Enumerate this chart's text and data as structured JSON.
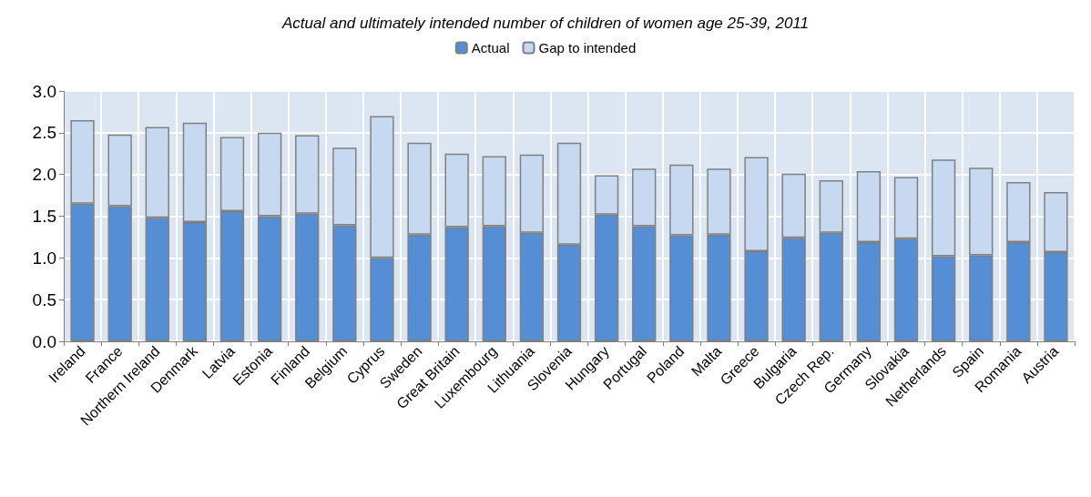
{
  "chart_data": {
    "type": "bar",
    "title": "Actual and ultimately intended number of children of women age 25-39, 2011",
    "categories": [
      "Ireland",
      "France",
      "Northern Ireland",
      "Denmark",
      "Latvia",
      "Estonia",
      "Finland",
      "Belgium",
      "Cyprus",
      "Sweden",
      "Great Britain",
      "Luxembourg",
      "Lithuania",
      "Slovenia",
      "Hungary",
      "Portugal",
      "Poland",
      "Malta",
      "Greece",
      "Bulgaria",
      "Czech Rep.",
      "Germany",
      "Slovakia",
      "Netherlands",
      "Spain",
      "Romania",
      "Austria"
    ],
    "stacked": true,
    "series": [
      {
        "name": "Actual",
        "color": "#558ed5",
        "values": [
          1.65,
          1.62,
          1.48,
          1.43,
          1.56,
          1.5,
          1.53,
          1.39,
          1.0,
          1.28,
          1.37,
          1.38,
          1.3,
          1.16,
          1.52,
          1.38,
          1.27,
          1.28,
          1.08,
          1.24,
          1.3,
          1.19,
          1.23,
          1.02,
          1.03,
          1.19,
          1.07
        ]
      },
      {
        "name": "Gap to intended",
        "color": "#c6d9f1",
        "values": [
          1.0,
          0.86,
          1.09,
          1.19,
          0.89,
          1.0,
          0.94,
          0.93,
          1.7,
          1.1,
          0.88,
          0.84,
          0.94,
          1.22,
          0.47,
          0.69,
          0.85,
          0.79,
          1.13,
          0.77,
          0.63,
          0.85,
          0.74,
          1.16,
          1.05,
          0.72,
          0.72
        ]
      }
    ],
    "ylim": [
      0,
      3
    ],
    "yticks": [
      {
        "value": 0,
        "label": "0.0"
      },
      0.5,
      {
        "value": 1,
        "label": "1.0"
      },
      1.5,
      {
        "value": 2,
        "label": "2.0"
      },
      2.5,
      {
        "value": 3,
        "label": "3.0"
      }
    ],
    "grid": true,
    "legend": "top"
  }
}
